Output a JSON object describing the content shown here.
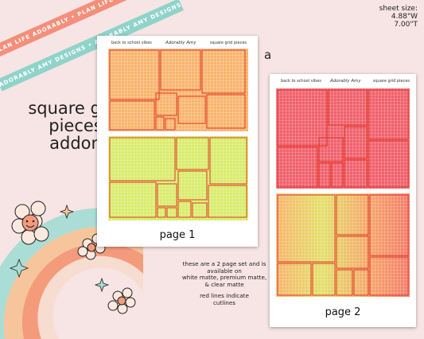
{
  "ribbons": {
    "top": "PLAN LIFE ADORABLY • PLAN LIFE ADORABLY • PLAN LIFE ADORABLY",
    "bottom": "ADORABLY AMY DESIGNS • ADORABLY AMY DESIGNS • ADORABLY AMY DESIGNS"
  },
  "title": {
    "line1": "square grid",
    "line2": "pieces",
    "line3": "addon"
  },
  "sheet_size": {
    "label": "sheet size:",
    "width": "4.88\"W",
    "height": "7.00\"T"
  },
  "variant_letter": "a",
  "page1": {
    "header_left": "back to school vibes",
    "header_center": "Adorably Amy",
    "header_right": "square grid pieces",
    "label": "page 1"
  },
  "page2": {
    "header_left": "back to school vibes",
    "header_center": "Adorably Amy",
    "header_right": "square grid pieces",
    "label": "page 2"
  },
  "info": {
    "line1": "these are a 2 page set and is",
    "line2": "available on",
    "line3": "white matte, premium matte,",
    "line4": "& clear matte",
    "line5": "red lines indicate",
    "line6": "cutlines"
  },
  "colors": {
    "background": "#f7e4e4",
    "coral_ribbon": "#f38f7a",
    "teal_ribbon": "#8fd3c9",
    "orange_grid": "#f8b46c",
    "lime_grid": "#d9ec6c",
    "pink_grid": "#f0616c",
    "cutline": "#e23a2c"
  }
}
